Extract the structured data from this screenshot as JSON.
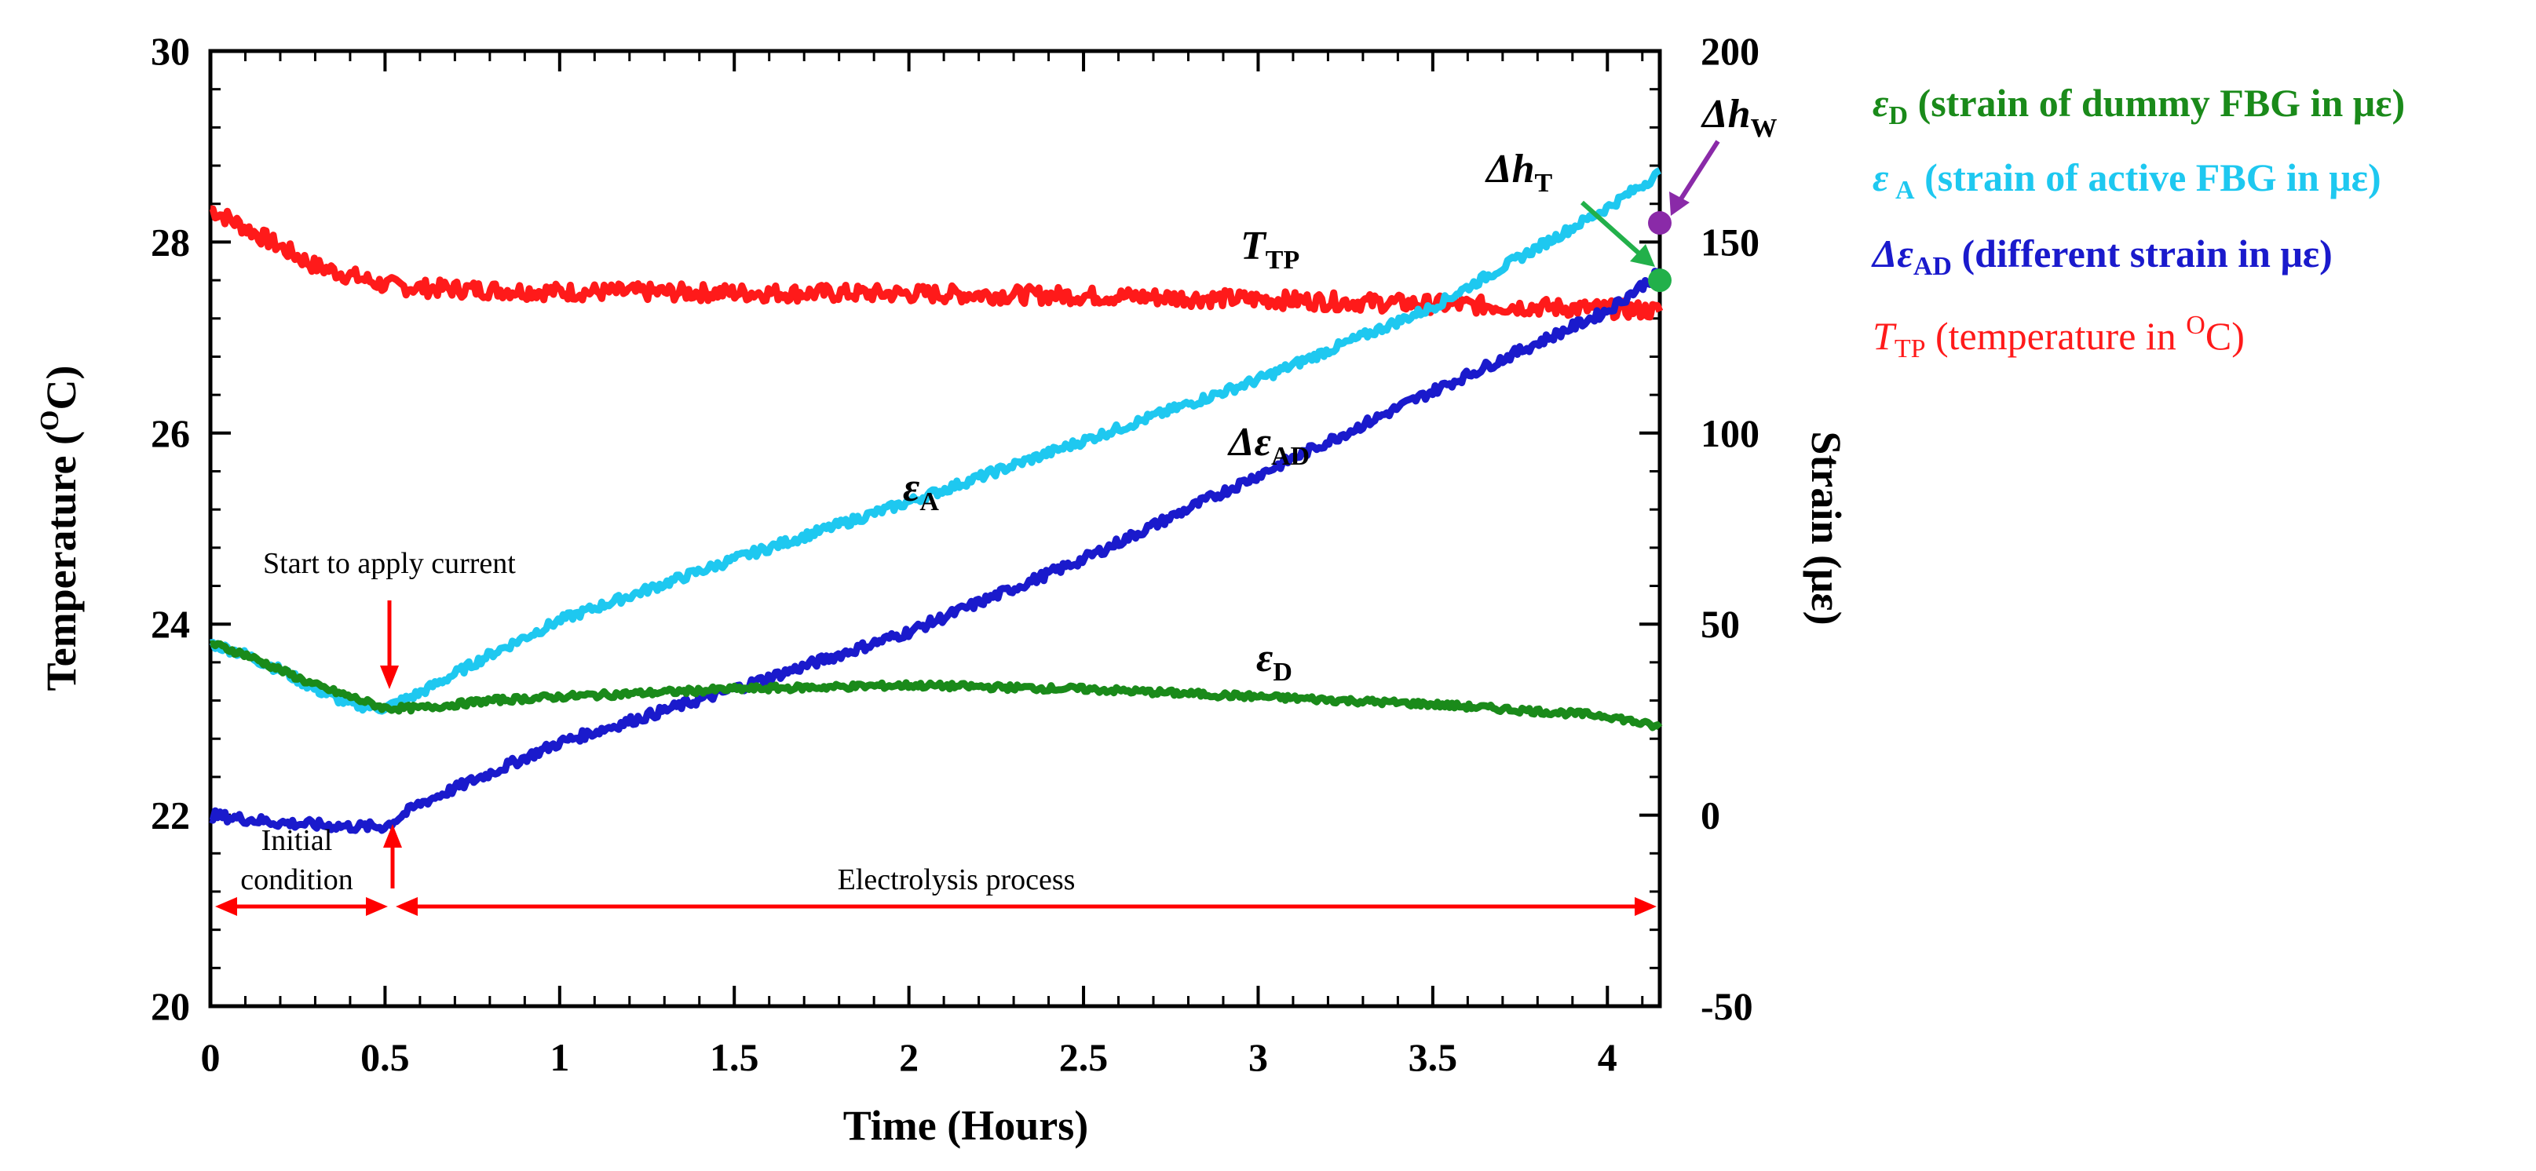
{
  "chart_data": {
    "type": "line",
    "xlabel": "Time (Hours)",
    "ylabel_left": "Temperature (OC)",
    "ylabel_right": "Strain (με)",
    "xlim": [
      0,
      4.15
    ],
    "ylim_left": [
      20,
      30
    ],
    "ylim_right": [
      -50,
      200
    ],
    "x_ticks": [
      "0",
      "0.5",
      "1",
      "1.5",
      "2",
      "2.5",
      "3",
      "3.5",
      "4"
    ],
    "x_tick_values": [
      0,
      0.5,
      1,
      1.5,
      2,
      2.5,
      3,
      3.5,
      4
    ],
    "y_left_ticks": [
      "20",
      "22",
      "24",
      "26",
      "28",
      "30"
    ],
    "y_left_tick_values": [
      20,
      22,
      24,
      26,
      28,
      30
    ],
    "y_right_ticks": [
      "-50",
      "0",
      "50",
      "100",
      "150",
      "200"
    ],
    "y_right_tick_values": [
      -50,
      0,
      50,
      100,
      150,
      200
    ],
    "series": [
      {
        "name": "T_TP",
        "axis": "left",
        "color": "#ff1a1a",
        "x": [
          0,
          0.1,
          0.2,
          0.3,
          0.4,
          0.5,
          0.6,
          0.8,
          1.0,
          1.5,
          2.0,
          2.5,
          3.0,
          3.5,
          4.0,
          4.15
        ],
        "values": [
          28.35,
          28.15,
          27.95,
          27.75,
          27.65,
          27.55,
          27.52,
          27.5,
          27.48,
          27.47,
          27.46,
          27.44,
          27.4,
          27.35,
          27.3,
          27.28
        ]
      },
      {
        "name": "ε_A",
        "axis": "right",
        "color": "#1ec8f0",
        "x": [
          0,
          0.1,
          0.2,
          0.3,
          0.4,
          0.5,
          0.6,
          0.8,
          1.0,
          1.5,
          2.0,
          2.5,
          3.0,
          3.5,
          4.0,
          4.15
        ],
        "values": [
          45,
          42,
          38,
          33,
          29,
          28,
          32,
          42,
          51,
          67,
          82,
          98,
          114,
          133,
          159,
          168
        ]
      },
      {
        "name": "Δε_AD",
        "axis": "right",
        "color": "#1a1acc",
        "x": [
          0,
          0.1,
          0.2,
          0.3,
          0.4,
          0.5,
          0.6,
          0.8,
          1.0,
          1.5,
          2.0,
          2.5,
          3.0,
          3.5,
          4.0,
          4.15
        ],
        "values": [
          0,
          -1,
          -2,
          -2.5,
          -3,
          -3,
          3,
          11,
          19,
          33,
          48,
          67,
          89,
          111,
          132,
          142
        ]
      },
      {
        "name": "ε_D",
        "axis": "right",
        "color": "#1a8a1a",
        "x": [
          0,
          0.1,
          0.2,
          0.3,
          0.4,
          0.5,
          0.6,
          0.8,
          1.0,
          1.5,
          2.0,
          2.5,
          3.0,
          3.5,
          4.0,
          4.15
        ],
        "values": [
          45,
          42,
          38,
          34,
          31,
          28,
          28,
          30,
          31,
          33,
          34,
          33,
          31,
          29,
          26,
          23
        ]
      }
    ],
    "series_labels": [
      {
        "main": "T",
        "sub": "TP",
        "color": "#ff1a1a"
      },
      {
        "main": "ε",
        "sub": "A",
        "color": "#1ec8f0"
      },
      {
        "main": "Δε",
        "sub": "AD",
        "color": "#1a1acc"
      },
      {
        "main": "ε",
        "sub": "D",
        "color": "#1a8a1a"
      }
    ],
    "markers": [
      {
        "name": "Δh_W",
        "main": "Δh",
        "sub": "W",
        "x": 4.15,
        "y_right": 155,
        "color": "#8a2aa8"
      },
      {
        "name": "Δh_T",
        "main": "Δh",
        "sub": "T",
        "x": 4.15,
        "y_right": 140,
        "color": "#22b04a"
      }
    ],
    "annotations": {
      "start_current": "Start to apply current",
      "initial_condition_line1": "Initial",
      "initial_condition_line2": "condition",
      "electrolysis": "Electrolysis process"
    },
    "legend": {
      "position": "top-right",
      "entries": [
        {
          "sym_main": "ε",
          "sym_sub": "D",
          "desc": " (strain of dummy FBG in με)",
          "color": "#1a8a1a"
        },
        {
          "sym_main": "ε",
          "sym_sub": " A",
          "desc": " (strain of active FBG in με)",
          "color": "#1ec8f0"
        },
        {
          "sym_main": "Δε",
          "sym_sub": "AD",
          "desc": " (different strain in με)",
          "color": "#1a1acc"
        },
        {
          "sym_main": "T",
          "sym_sub": "TP",
          "desc": " (temperature in ",
          "desc_sup": "O",
          "desc_end": "C)",
          "color": "#ff1a1a"
        }
      ]
    },
    "ylabel_left_parts": {
      "before": "Temperature (",
      "sup": "O",
      "after": "C)"
    }
  }
}
